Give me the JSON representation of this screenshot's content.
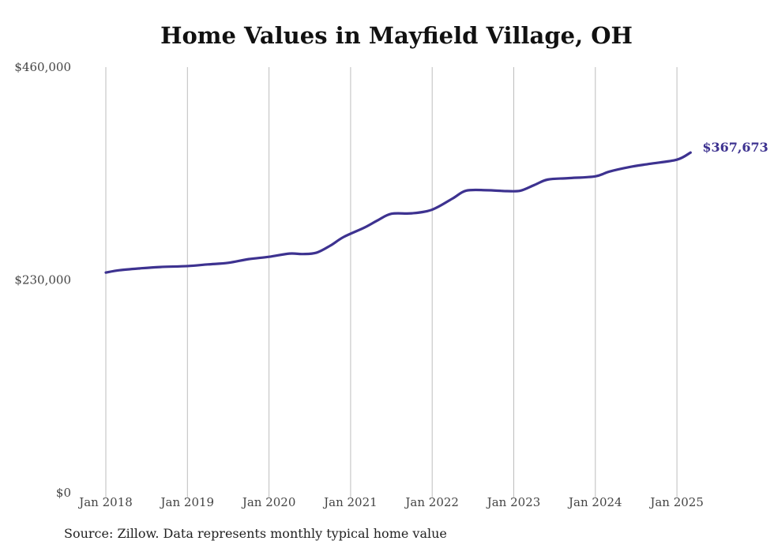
{
  "chart_data": {
    "type": "line",
    "title": "Home Values in Mayfield Village, OH",
    "xlabel": "",
    "ylabel": "",
    "ylim": [
      0,
      460000
    ],
    "y_tick_labels": [
      "$460,000",
      "$230,000",
      "$0"
    ],
    "y_tick_values": [
      460000,
      230000,
      0
    ],
    "x_tick_labels": [
      "Jan 2018",
      "Jan 2019",
      "Jan 2020",
      "Jan 2021",
      "Jan 2022",
      "Jan 2023",
      "Jan 2024",
      "Jan 2025"
    ],
    "x_tick_values": [
      "2018-01",
      "2019-01",
      "2020-01",
      "2021-01",
      "2022-01",
      "2023-01",
      "2024-01",
      "2025-01"
    ],
    "grid": "vertical",
    "end_label": "$367,673",
    "source": "Source: Zillow. Data represents monthly typical home value",
    "colors": {
      "line": "#3d3290",
      "grid": "#bdbdbd",
      "axis": "#444444"
    },
    "series": [
      {
        "points": [
          [
            "2018-01",
            238000
          ],
          [
            "2018-03",
            240500
          ],
          [
            "2018-06",
            242500
          ],
          [
            "2018-09",
            244000
          ],
          [
            "2019-01",
            245000
          ],
          [
            "2019-04",
            246800
          ],
          [
            "2019-07",
            248500
          ],
          [
            "2019-10",
            252500
          ],
          [
            "2020-01",
            255000
          ],
          [
            "2020-04",
            258500
          ],
          [
            "2020-06",
            258000
          ],
          [
            "2020-08",
            259500
          ],
          [
            "2020-10",
            267000
          ],
          [
            "2020-12",
            276500
          ],
          [
            "2021-03",
            286500
          ],
          [
            "2021-05",
            294500
          ],
          [
            "2021-07",
            301500
          ],
          [
            "2021-10",
            302000
          ],
          [
            "2022-01",
            306000
          ],
          [
            "2022-04",
            318000
          ],
          [
            "2022-06",
            326500
          ],
          [
            "2022-09",
            327000
          ],
          [
            "2022-12",
            326000
          ],
          [
            "2023-02",
            326500
          ],
          [
            "2023-04",
            332500
          ],
          [
            "2023-06",
            338500
          ],
          [
            "2023-09",
            340000
          ],
          [
            "2024-01",
            342000
          ],
          [
            "2024-03",
            347000
          ],
          [
            "2024-06",
            352000
          ],
          [
            "2024-09",
            355500
          ],
          [
            "2025-01",
            360000
          ],
          [
            "2025-03",
            367673
          ]
        ]
      }
    ]
  }
}
